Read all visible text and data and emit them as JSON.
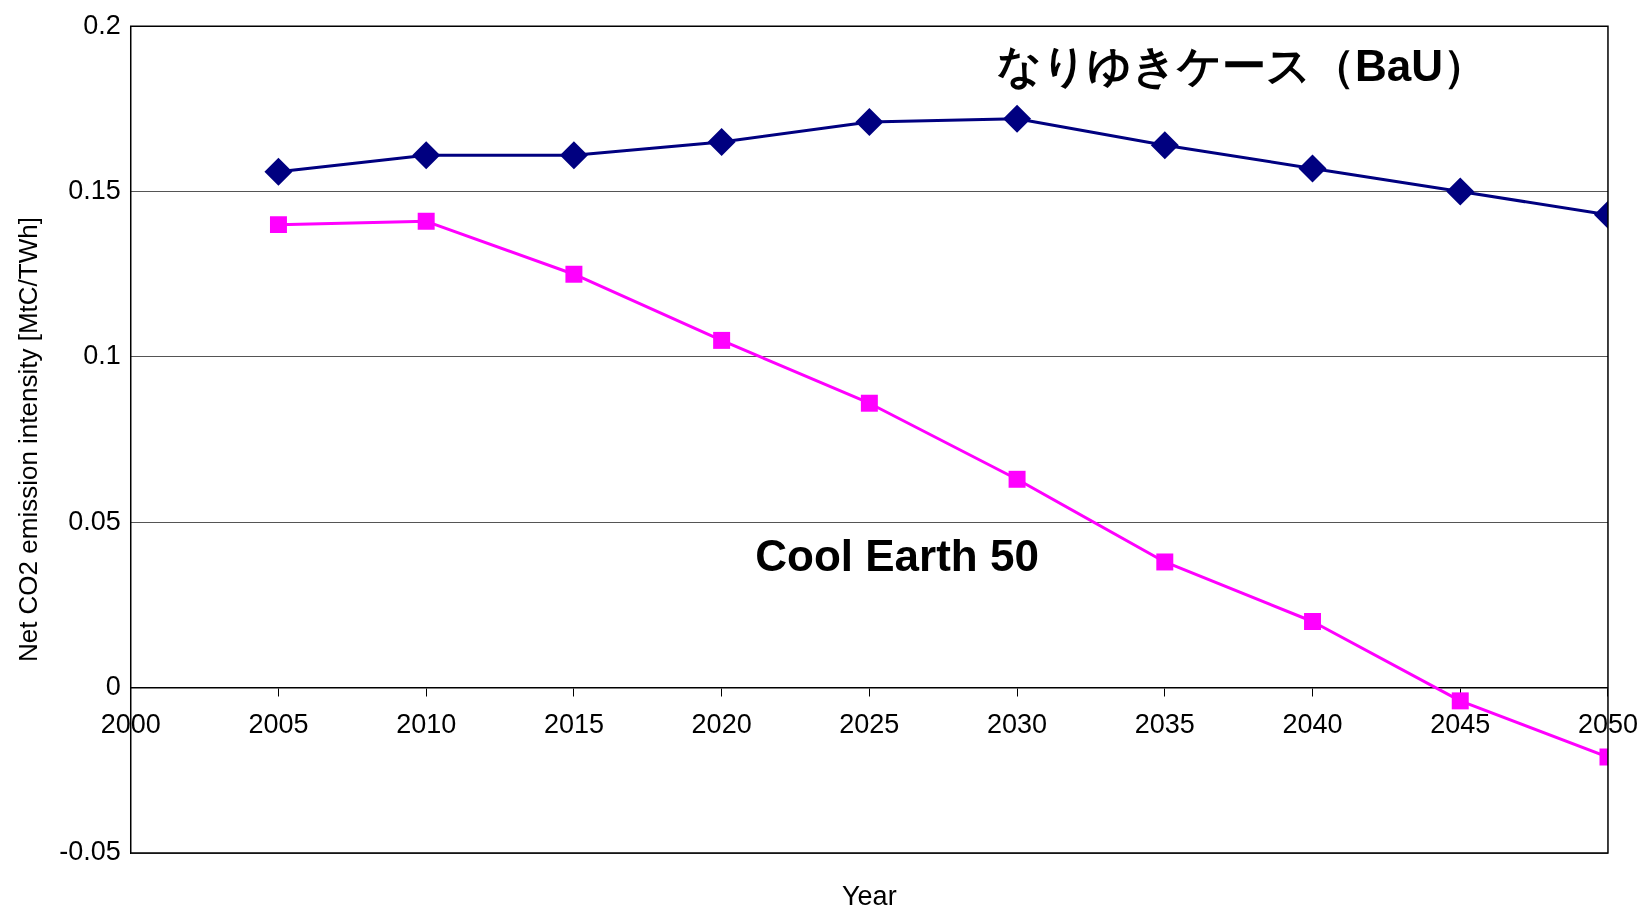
{
  "chart_data": {
    "type": "line",
    "xlabel": "Year",
    "ylabel": "Net CO2 emission intensity [MtC/TWh]",
    "x": [
      2005,
      2010,
      2015,
      2020,
      2025,
      2030,
      2035,
      2040,
      2045,
      2050
    ],
    "series": [
      {
        "name": "なりゆきケース（BaU）",
        "color": "#000080",
        "marker": "diamond",
        "values": [
          0.156,
          0.161,
          0.161,
          0.165,
          0.171,
          0.172,
          0.164,
          0.157,
          0.15,
          0.143
        ]
      },
      {
        "name": "Cool Earth 50",
        "color": "#ff00ff",
        "marker": "square",
        "values": [
          0.14,
          0.141,
          0.125,
          0.105,
          0.086,
          0.063,
          0.038,
          0.02,
          -0.004,
          -0.021
        ]
      }
    ],
    "xlim": [
      2000,
      2050
    ],
    "xticks": [
      2000,
      2005,
      2010,
      2015,
      2020,
      2025,
      2030,
      2035,
      2040,
      2045,
      2050
    ],
    "ylim": [
      -0.05,
      0.2
    ],
    "yticks": [
      -0.05,
      0,
      0.05,
      0.1,
      0.15,
      0.2
    ],
    "grid": "y",
    "legend": false,
    "line_style": "solid"
  }
}
